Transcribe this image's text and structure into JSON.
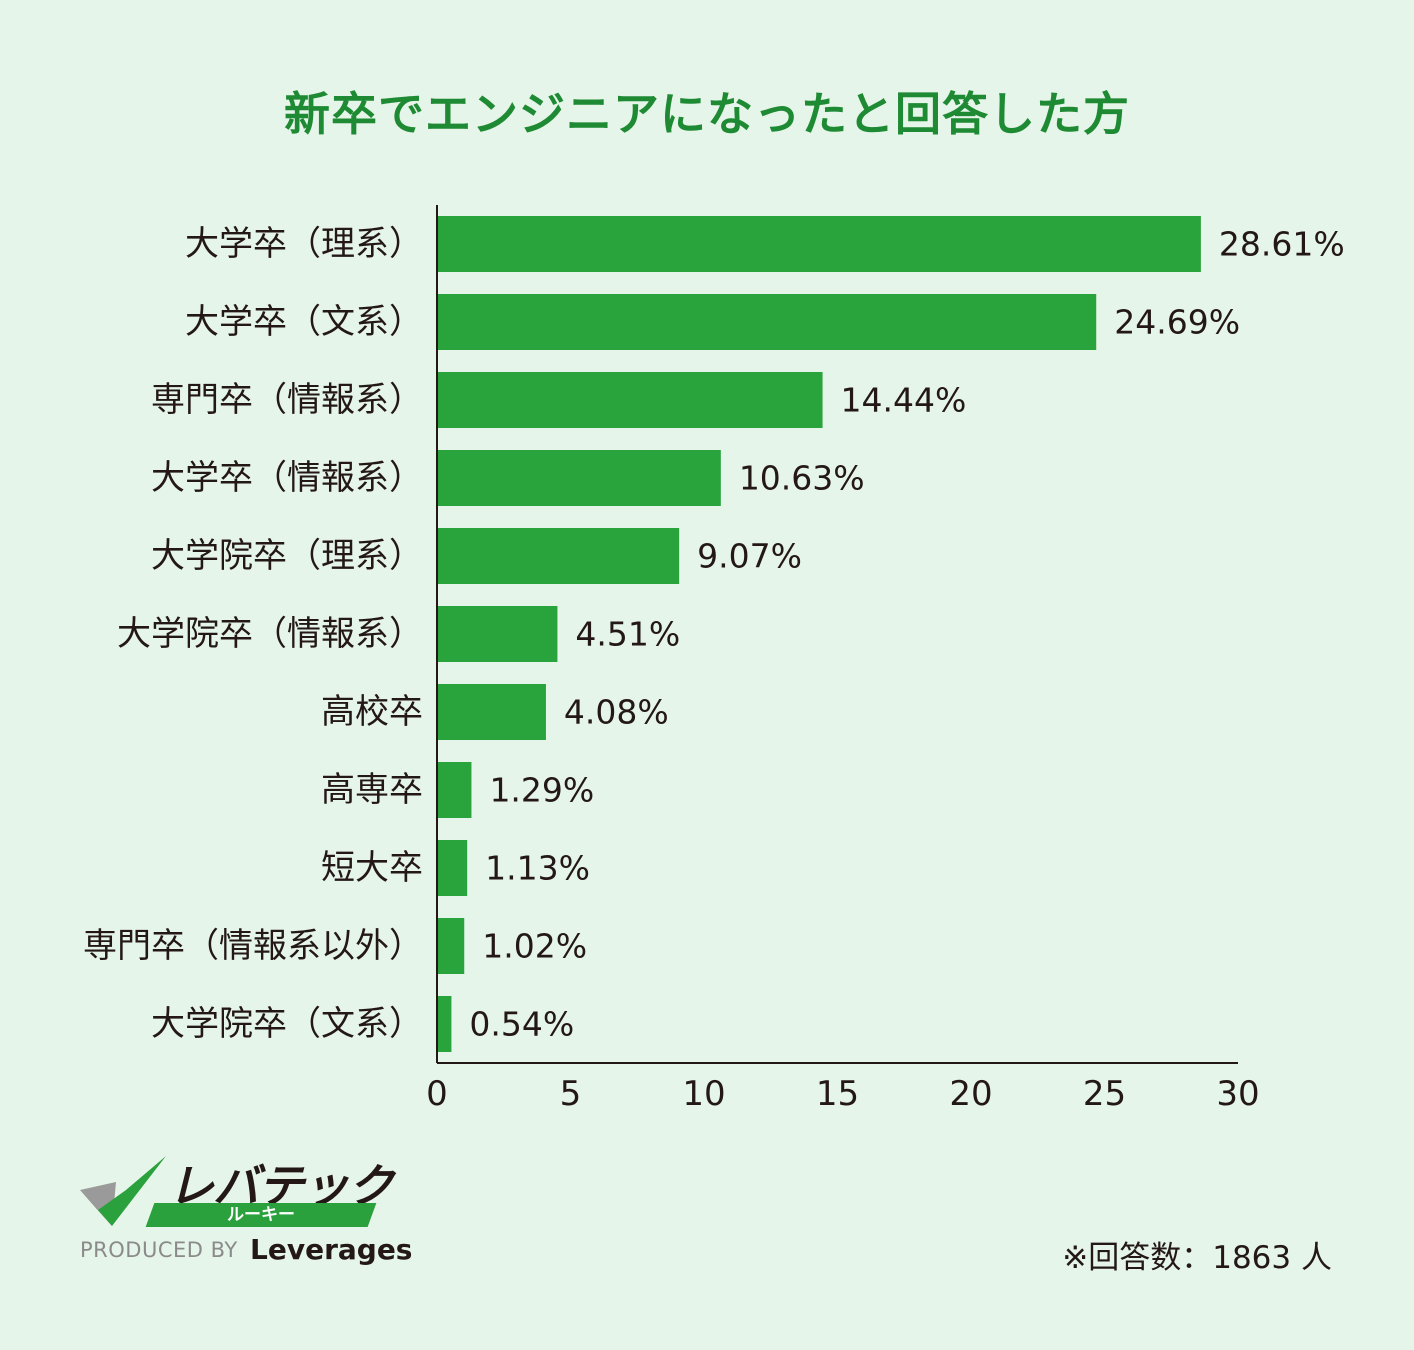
{
  "title": "新卒でエンジニアになったと回答した方",
  "chart_data": {
    "type": "bar",
    "orientation": "horizontal",
    "title": "新卒でエンジニアになったと回答した方",
    "categories": [
      "大学卒（理系）",
      "大学卒（文系）",
      "専門卒（情報系）",
      "大学卒（情報系）",
      "大学院卒（理系）",
      "大学院卒（情報系）",
      "高校卒",
      "高専卒",
      "短大卒",
      "専門卒（情報系以外）",
      "大学院卒（文系）"
    ],
    "values": [
      28.61,
      24.69,
      14.44,
      10.63,
      9.07,
      4.51,
      4.08,
      1.29,
      1.13,
      1.02,
      0.54
    ],
    "value_labels": [
      "28.61%",
      "24.69%",
      "14.44%",
      "10.63%",
      "9.07%",
      "4.51%",
      "4.08%",
      "1.29%",
      "1.13%",
      "1.02%",
      "0.54%"
    ],
    "xlim": [
      0,
      30
    ],
    "xticks": [
      0,
      5,
      10,
      15,
      20,
      25,
      30
    ],
    "xlabel": "",
    "ylabel": "",
    "grid": false,
    "bar_color": "#29a33c"
  },
  "brand": {
    "name": "レバテック",
    "sub": "ルーキー",
    "produced_by": "PRODUCED BY",
    "company": "Leverages"
  },
  "note": "※回答数：1863 人",
  "colors": {
    "background": "#e6f5e9",
    "title": "#1e8a33",
    "bar": "#29a33c",
    "logo_dark": "#3a3a3a",
    "logo_gray": "#9a9a9a"
  }
}
